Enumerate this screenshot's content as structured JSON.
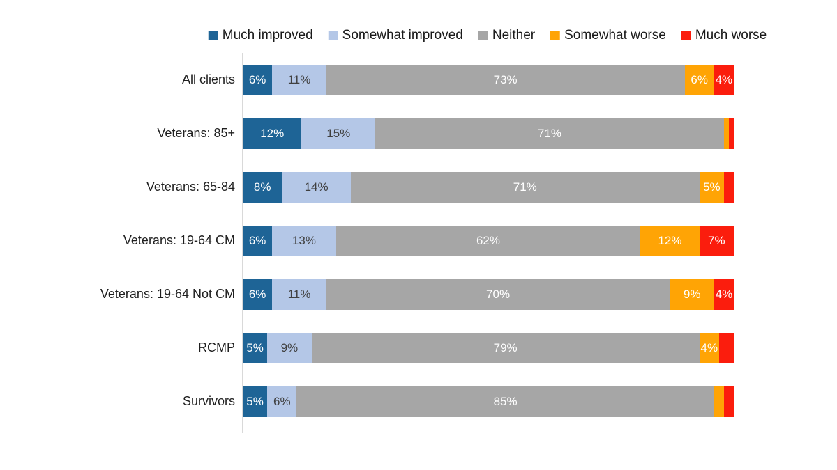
{
  "chart_data": {
    "type": "bar",
    "variant": "horizontal-stacked",
    "title": "",
    "xlabel": "",
    "ylabel": "",
    "xlim": [
      0,
      100
    ],
    "grid": false,
    "legend_position": "top",
    "background_color": "#FFFFFF",
    "axis_line_color": "#D9D9D9",
    "label_format": "{value}%",
    "min_label_value": 4,
    "categories": [
      "All clients",
      "Veterans: 85+",
      "Veterans: 65-84",
      "Veterans: 19-64 CM",
      "Veterans: 19-64 Not CM",
      "RCMP",
      "Survivors"
    ],
    "series": [
      {
        "name": "Much improved",
        "color": "#1E6496",
        "label_color": "#FFFFFF",
        "values": [
          6,
          12,
          8,
          6,
          6,
          5,
          5
        ]
      },
      {
        "name": "Somewhat improved",
        "color": "#B4C7E7",
        "label_color": "#404040",
        "values": [
          11,
          15,
          14,
          13,
          11,
          9,
          6
        ]
      },
      {
        "name": "Neither",
        "color": "#A6A6A6",
        "label_color": "#FFFFFF",
        "values": [
          73,
          71,
          71,
          62,
          70,
          79,
          85
        ]
      },
      {
        "name": "Somewhat worse",
        "color": "#FFA405",
        "label_color": "#FFFFFF",
        "values": [
          6,
          1,
          5,
          12,
          9,
          4,
          2
        ]
      },
      {
        "name": "Much worse",
        "color": "#FB1D0D",
        "label_color": "#FFFFFF",
        "values": [
          4,
          1,
          2,
          7,
          4,
          3,
          2
        ]
      }
    ]
  }
}
